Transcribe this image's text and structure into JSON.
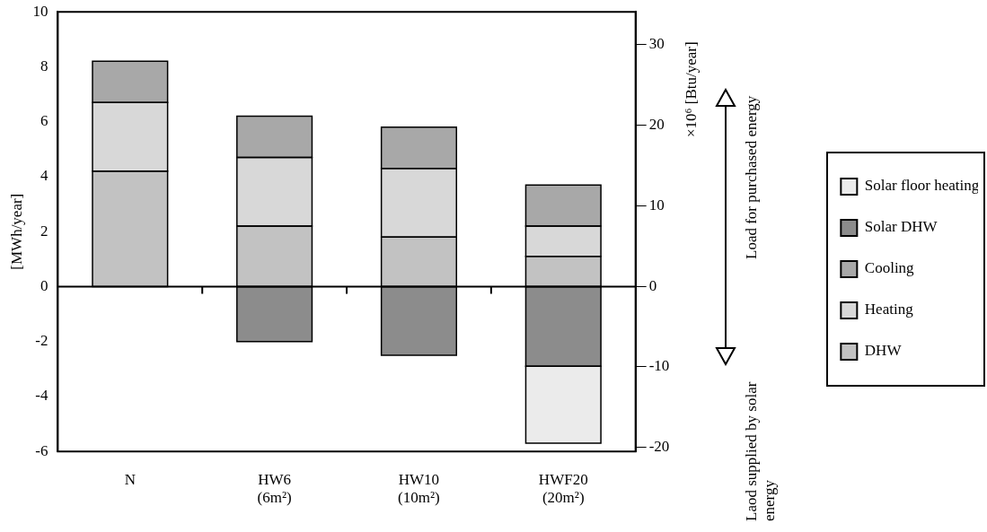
{
  "chart_data": {
    "type": "bar",
    "stacked": true,
    "ylabel": "[MWh/year]",
    "y2label": "×10⁶ [Btu/year]",
    "ref_lines": [
      {
        "axis": "y",
        "value": 0
      }
    ],
    "categories": [
      "N",
      "HW6 (6m²)",
      "HW10 (10m²)",
      "HWF20 (20m²)"
    ],
    "series": [
      {
        "name": "DHW",
        "color": "#c2c2c2",
        "values": [
          4.2,
          2.2,
          1.8,
          1.1
        ]
      },
      {
        "name": "Heating",
        "color": "#d8d8d8",
        "values": [
          2.5,
          2.5,
          2.5,
          1.1
        ]
      },
      {
        "name": "Cooling",
        "color": "#a8a8a8",
        "values": [
          1.5,
          1.5,
          1.5,
          1.5
        ]
      },
      {
        "name": "Solar DHW",
        "color": "#8c8c8c",
        "values": [
          null,
          -2.0,
          -2.5,
          -2.9
        ]
      },
      {
        "name": "Solar floor heating",
        "color": "#ebebeb",
        "values": [
          null,
          null,
          null,
          -2.8
        ]
      }
    ],
    "ylim": [
      -6,
      10
    ],
    "yticks": [
      -6,
      -4,
      -2,
      0,
      2,
      4,
      6,
      8,
      10
    ],
    "y2lim": [
      -20.5,
      34.1
    ],
    "y2ticks": [
      -20,
      -10,
      0,
      10,
      20,
      30
    ],
    "legend": "right",
    "grid": false,
    "annotations": [
      "Load for purchased energy",
      "Laod supplied by solar energy"
    ]
  }
}
